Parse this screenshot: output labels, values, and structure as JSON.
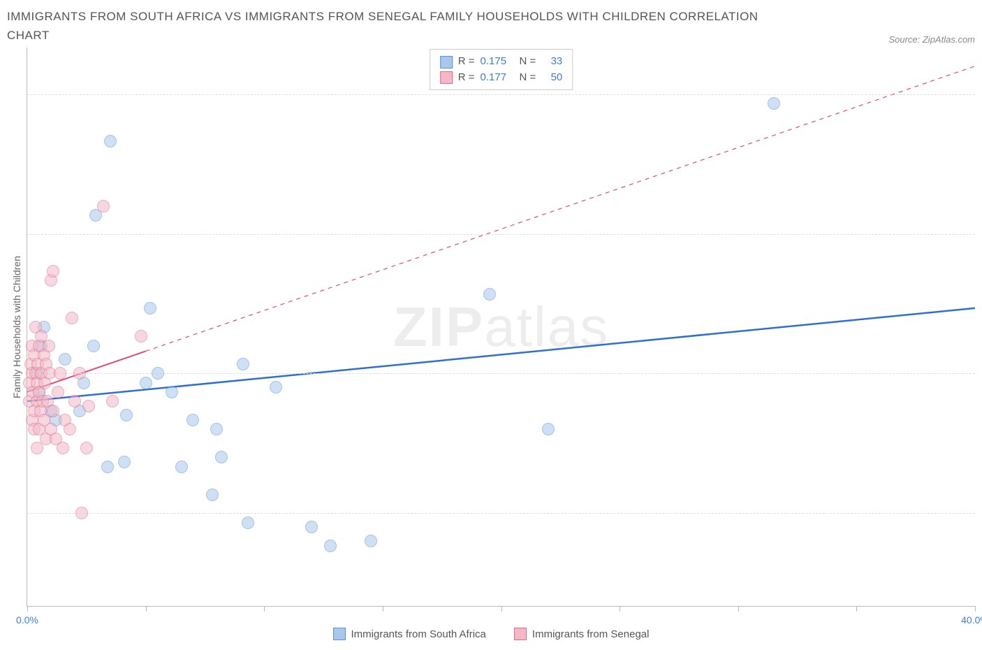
{
  "title": "IMMIGRANTS FROM SOUTH AFRICA VS IMMIGRANTS FROM SENEGAL FAMILY HOUSEHOLDS WITH CHILDREN CORRELATION CHART",
  "source_label": "Source: ZipAtlas.com",
  "y_axis_label": "Family Households with Children",
  "watermark_bold": "ZIP",
  "watermark_rest": "atlas",
  "chart": {
    "type": "scatter",
    "background_color": "#ffffff",
    "grid_color": "#dddddd",
    "axis_color": "#bbbbbb",
    "x_range": [
      0,
      40
    ],
    "y_range": [
      5,
      65
    ],
    "x_ticks": [
      0,
      5,
      10,
      15,
      20,
      25,
      30,
      35,
      40
    ],
    "x_tick_labels": {
      "0": "0.0%",
      "40": "40.0%"
    },
    "x_tick_label_color": "#3b7dd8",
    "y_ticks": [
      15,
      30,
      45,
      60
    ],
    "y_tick_label_suffix": "%",
    "y_tick_label_color": "#3b7dd8",
    "marker_radius": 9,
    "marker_opacity": 0.55,
    "marker_border_width": 1,
    "series": [
      {
        "id": "south_africa",
        "label": "Immigrants from South Africa",
        "color_fill": "#a9c7ec",
        "color_border": "#5a93d6",
        "r_value": "0.175",
        "n_value": "33",
        "trend": {
          "x1": 0,
          "y1": 27,
          "x2": 40,
          "y2": 37,
          "solid_until_x": 40,
          "line_color": "#2f6fd0",
          "line_width": 2.5
        },
        "points": [
          [
            0.4,
            30
          ],
          [
            0.5,
            28
          ],
          [
            0.6,
            33
          ],
          [
            0.7,
            35
          ],
          [
            1.0,
            26
          ],
          [
            1.2,
            25
          ],
          [
            1.6,
            31.5
          ],
          [
            2.2,
            26
          ],
          [
            2.4,
            29
          ],
          [
            2.8,
            33
          ],
          [
            2.9,
            47
          ],
          [
            3.5,
            55
          ],
          [
            3.4,
            20
          ],
          [
            4.1,
            20.5
          ],
          [
            4.2,
            25.5
          ],
          [
            5.0,
            29
          ],
          [
            5.2,
            37
          ],
          [
            5.5,
            30
          ],
          [
            6.1,
            28
          ],
          [
            6.5,
            20
          ],
          [
            7.0,
            25
          ],
          [
            7.8,
            17
          ],
          [
            8.0,
            24
          ],
          [
            8.2,
            21
          ],
          [
            9.1,
            31
          ],
          [
            9.3,
            14
          ],
          [
            10.5,
            28.5
          ],
          [
            12.0,
            13.5
          ],
          [
            12.8,
            11.5
          ],
          [
            14.5,
            12
          ],
          [
            19.5,
            38.5
          ],
          [
            22.0,
            24
          ],
          [
            31.5,
            59
          ]
        ]
      },
      {
        "id": "senegal",
        "label": "Immigrants from Senegal",
        "color_fill": "#f3b9c7",
        "color_border": "#e06a8a",
        "r_value": "0.177",
        "n_value": "50",
        "trend": {
          "x1": 0,
          "y1": 28,
          "x2": 40,
          "y2": 63,
          "solid_until_x": 5,
          "line_color": "#e24a78",
          "line_width": 2
        },
        "points": [
          [
            0.1,
            27
          ],
          [
            0.1,
            29
          ],
          [
            0.15,
            31
          ],
          [
            0.2,
            25
          ],
          [
            0.2,
            33
          ],
          [
            0.2,
            30
          ],
          [
            0.25,
            28
          ],
          [
            0.3,
            24
          ],
          [
            0.3,
            26
          ],
          [
            0.3,
            32
          ],
          [
            0.35,
            30
          ],
          [
            0.35,
            35
          ],
          [
            0.4,
            22
          ],
          [
            0.4,
            27
          ],
          [
            0.4,
            29
          ],
          [
            0.45,
            31
          ],
          [
            0.5,
            24
          ],
          [
            0.5,
            33
          ],
          [
            0.5,
            28
          ],
          [
            0.55,
            26
          ],
          [
            0.6,
            30
          ],
          [
            0.6,
            34
          ],
          [
            0.65,
            27
          ],
          [
            0.7,
            32
          ],
          [
            0.7,
            25
          ],
          [
            0.75,
            29
          ],
          [
            0.8,
            23
          ],
          [
            0.8,
            31
          ],
          [
            0.85,
            27
          ],
          [
            0.9,
            33
          ],
          [
            0.95,
            30
          ],
          [
            1.0,
            40
          ],
          [
            1.0,
            24
          ],
          [
            1.1,
            41
          ],
          [
            1.1,
            26
          ],
          [
            1.2,
            23
          ],
          [
            1.3,
            28
          ],
          [
            1.4,
            30
          ],
          [
            1.5,
            22
          ],
          [
            1.6,
            25
          ],
          [
            1.8,
            24
          ],
          [
            1.9,
            36
          ],
          [
            2.0,
            27
          ],
          [
            2.2,
            30
          ],
          [
            2.3,
            15
          ],
          [
            2.5,
            22
          ],
          [
            2.6,
            26.5
          ],
          [
            3.2,
            48
          ],
          [
            3.6,
            27
          ],
          [
            4.8,
            34
          ]
        ]
      }
    ]
  },
  "stats_legend": {
    "r_label": "R =",
    "n_label": "N =",
    "value_color": "#3b7dd8"
  },
  "bottom_legend_series_order": [
    "south_africa",
    "senegal"
  ]
}
